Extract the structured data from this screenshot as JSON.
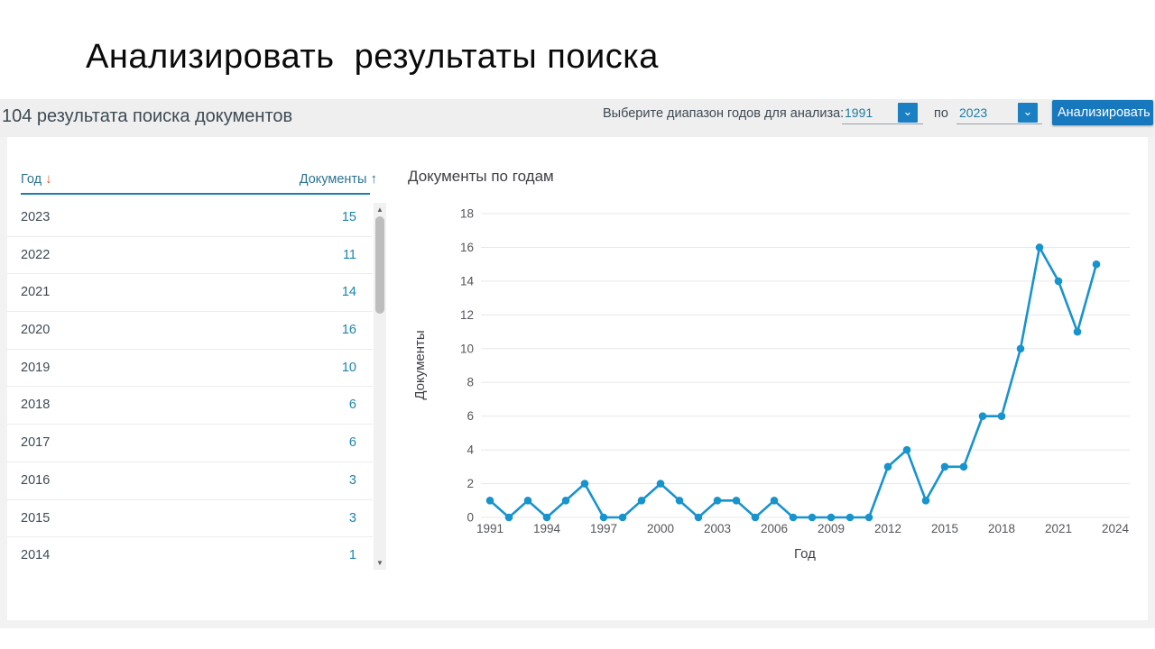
{
  "slide": {
    "title": "Анализировать  результаты поиска"
  },
  "header": {
    "results_count": "104 результата поиска документов",
    "range_label": "Выберите диапазон годов для анализа:",
    "year_from": "1991",
    "to_label": "по",
    "year_to": "2023",
    "analyze_button": "Анализировать",
    "chevron_glyph": "⌄"
  },
  "table": {
    "year_header": "Год",
    "year_sort_icon": "arrow-down",
    "year_sort_glyph": "↓",
    "docs_header": "Документы",
    "docs_sort_icon": "arrow-up",
    "docs_sort_glyph": "↑",
    "rows": [
      {
        "year": "2023",
        "count": "15"
      },
      {
        "year": "2022",
        "count": "11"
      },
      {
        "year": "2021",
        "count": "14"
      },
      {
        "year": "2020",
        "count": "16"
      },
      {
        "year": "2019",
        "count": "10"
      },
      {
        "year": "2018",
        "count": "6"
      },
      {
        "year": "2017",
        "count": "6"
      },
      {
        "year": "2016",
        "count": "3"
      },
      {
        "year": "2015",
        "count": "3"
      },
      {
        "year": "2014",
        "count": "1"
      }
    ]
  },
  "scrollbar": {
    "up_glyph": "▲",
    "down_glyph": "▼"
  },
  "chart_data": {
    "type": "line",
    "title": "Документы по годам",
    "xlabel": "Год",
    "ylabel": "Документы",
    "x": [
      1991,
      1992,
      1993,
      1994,
      1995,
      1996,
      1997,
      1998,
      1999,
      2000,
      2001,
      2002,
      2003,
      2004,
      2005,
      2006,
      2007,
      2008,
      2009,
      2010,
      2011,
      2012,
      2013,
      2014,
      2015,
      2016,
      2017,
      2018,
      2019,
      2020,
      2021,
      2022,
      2023
    ],
    "values": [
      1,
      0,
      1,
      0,
      1,
      2,
      0,
      0,
      1,
      2,
      1,
      0,
      1,
      1,
      0,
      1,
      0,
      0,
      0,
      0,
      0,
      3,
      4,
      1,
      3,
      3,
      6,
      6,
      10,
      16,
      14,
      11,
      15
    ],
    "xticks": [
      1991,
      1994,
      1997,
      2000,
      2003,
      2006,
      2009,
      2012,
      2015,
      2018,
      2021,
      2024
    ],
    "ylim": [
      0,
      18
    ],
    "ytick_step": 2,
    "grid": true,
    "legend": "none",
    "line_color": "#1793ce"
  },
  "colors": {
    "accent_blue": "#1878be",
    "link_blue": "#1d84ae",
    "sort_header_blue": "#2d7491",
    "sort_arrow_orange": "#e0592a",
    "header_underline": "#1e7fae",
    "line": "#1793ce",
    "header_bar_bg": "#efefef",
    "page_bg": "#f2f2f2",
    "gridline": "#e8e8e8",
    "text_dark": "#3d4a54"
  }
}
